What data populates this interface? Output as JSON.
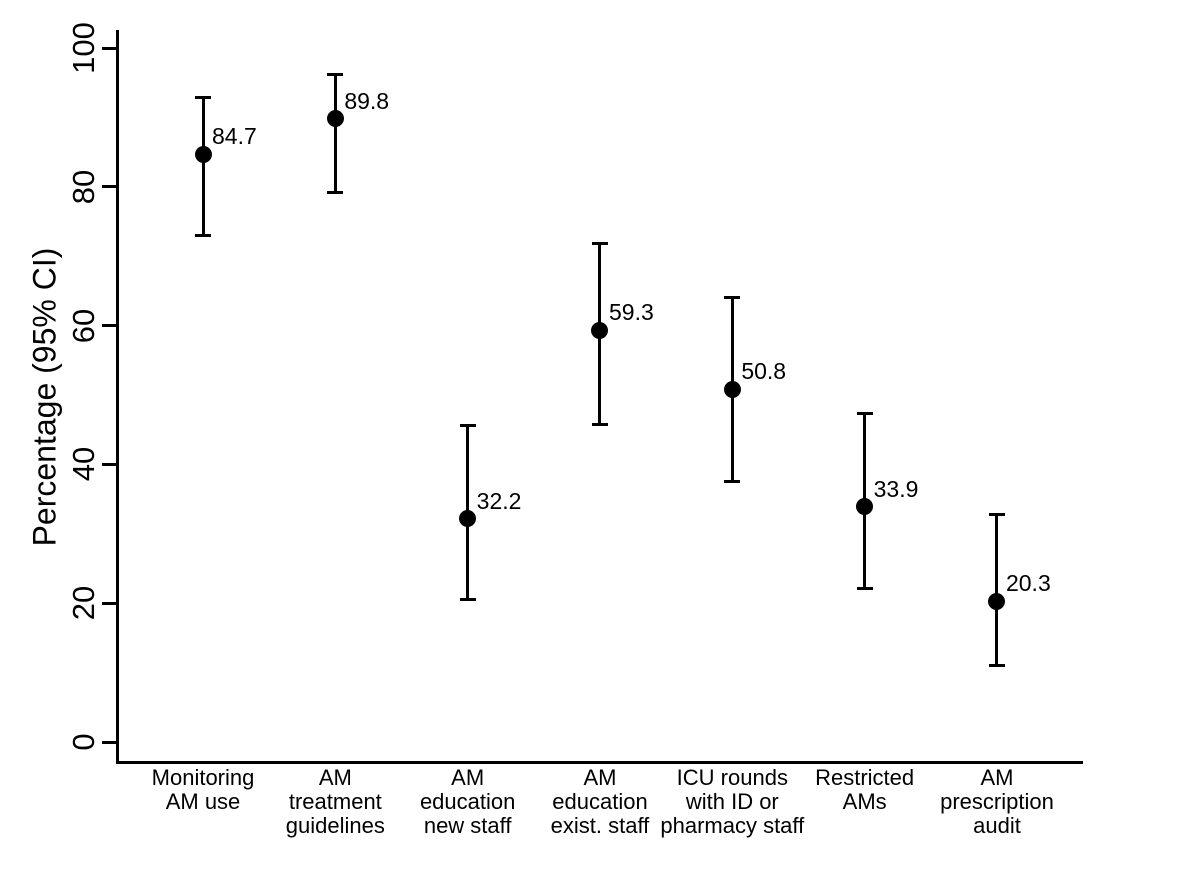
{
  "figure": {
    "background_color": "#ffffff",
    "ink_color": "#000000"
  },
  "chart_data": {
    "type": "scatter",
    "subtype": "point-estimates-with-95%-CI-error-bars",
    "title": "",
    "xlabel": "",
    "ylabel": "Percentage (95% CI)",
    "ylim": [
      0,
      100
    ],
    "yticks": [
      0,
      20,
      40,
      60,
      80,
      100
    ],
    "grid": "off",
    "legend": "none",
    "marker": "filled-circle",
    "categories": [
      "Monitoring AM use",
      "AM treatment guidelines",
      "AM education new staff",
      "AM education exist. staff",
      "ICU rounds with ID or pharmacy staff",
      "Restricted AMs",
      "AM prescription audit"
    ],
    "category_label_lines": [
      [
        "Monitoring",
        "AM use"
      ],
      [
        "AM",
        "treatment",
        "guidelines"
      ],
      [
        "AM",
        "education",
        "new staff"
      ],
      [
        "AM",
        "education",
        "exist. staff"
      ],
      [
        "ICU rounds",
        "with ID or",
        "pharmacy staff"
      ],
      [
        "Restricted",
        "AMs"
      ],
      [
        "AM",
        "prescription",
        "audit"
      ]
    ],
    "series": [
      {
        "name": "Percentage (95% CI)",
        "points": [
          {
            "category": "Monitoring AM use",
            "value": 84.7,
            "ci_low": 73.0,
            "ci_high": 92.8,
            "label": "84.7"
          },
          {
            "category": "AM treatment guidelines",
            "value": 89.8,
            "ci_low": 79.2,
            "ci_high": 96.2,
            "label": "89.8"
          },
          {
            "category": "AM education new staff",
            "value": 32.2,
            "ci_low": 20.6,
            "ci_high": 45.6,
            "label": "32.2"
          },
          {
            "category": "AM education exist. staff",
            "value": 59.3,
            "ci_low": 45.7,
            "ci_high": 71.9,
            "label": "59.3"
          },
          {
            "category": "ICU rounds with ID or pharmacy staff",
            "value": 50.8,
            "ci_low": 37.5,
            "ci_high": 64.1,
            "label": "50.8"
          },
          {
            "category": "Restricted AMs",
            "value": 33.9,
            "ci_low": 22.1,
            "ci_high": 47.4,
            "label": "33.9"
          },
          {
            "category": "AM prescription audit",
            "value": 20.3,
            "ci_low": 11.0,
            "ci_high": 32.8,
            "label": "20.3"
          }
        ]
      }
    ]
  }
}
